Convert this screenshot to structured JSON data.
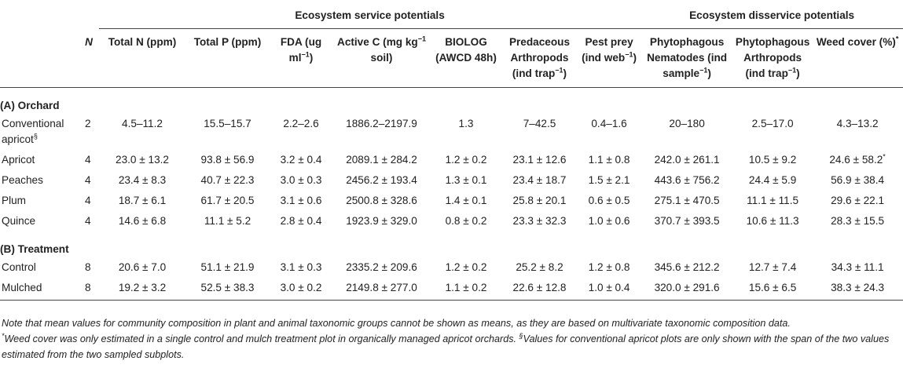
{
  "groups": {
    "service": "Ecosystem service potentials",
    "disservice": "Ecosystem disservice potentials"
  },
  "columns": [
    "",
    "N",
    "Total N (ppm)",
    "Total P (ppm)",
    "FDA (ug ml−1)",
    "Active C (mg kg−1 soil)",
    "BIOLOG (AWCD 48h)",
    "Predaceous Arthropods (ind trap−1)",
    "Pest prey (ind web−1)",
    "Phytophagous Nematodes (ind sample−1)",
    "Phytophagous Arthropods (ind trap−1)",
    "Weed cover (%)*"
  ],
  "sections": [
    {
      "title": "(A) Orchard",
      "rows": [
        [
          "Conventional apricot§",
          "2",
          "4.5–11.2",
          "15.5–15.7",
          "2.2–2.6",
          "1886.2–2197.9",
          "1.3",
          "7–42.5",
          "0.4–1.6",
          "20–180",
          "2.5–17.0",
          "4.3–13.2"
        ],
        [
          "Apricot",
          "4",
          "23.0 ± 13.2",
          "93.8 ± 56.9",
          "3.2 ± 0.4",
          "2089.1 ± 284.2",
          "1.2 ± 0.2",
          "23.1 ± 12.6",
          "1.1 ± 0.8",
          "242.0 ± 261.1",
          "10.5 ± 9.2",
          "24.6 ± 58.2*"
        ],
        [
          "Peaches",
          "4",
          "23.4 ± 8.3",
          "40.7 ± 22.3",
          "3.0 ± 0.3",
          "2456.2 ± 193.4",
          "1.3 ± 0.1",
          "23.4 ± 18.7",
          "1.5 ± 2.1",
          "443.6 ± 756.2",
          "24.4 ± 5.9",
          "56.9 ± 38.4"
        ],
        [
          "Plum",
          "4",
          "18.7 ± 6.1",
          "61.7 ± 20.5",
          "3.1 ± 0.6",
          "2500.8 ± 328.6",
          "1.4 ± 0.1",
          "25.8 ± 20.1",
          "0.6 ± 0.5",
          "275.1 ± 470.5",
          "11.1 ± 11.5",
          "29.6 ± 22.1"
        ],
        [
          "Quince",
          "4",
          "14.6 ± 6.8",
          "11.1 ± 5.2",
          "2.8 ± 0.4",
          "1923.9 ± 329.0",
          "0.8 ± 0.2",
          "23.3 ± 32.3",
          "1.0 ± 0.6",
          "370.7 ± 393.5",
          "10.6 ± 11.3",
          "28.3 ± 15.5"
        ]
      ]
    },
    {
      "title": "(B) Treatment",
      "rows": [
        [
          "Control",
          "8",
          "20.6 ± 7.0",
          "51.1 ± 21.9",
          "3.1 ± 0.3",
          "2335.2 ± 209.6",
          "1.2 ± 0.2",
          "25.2 ± 8.2",
          "1.2 ± 0.8",
          "345.6 ± 212.2",
          "12.7 ± 7.4",
          "34.3 ± 11.1"
        ],
        [
          "Mulched",
          "8",
          "19.2 ± 3.2",
          "52.5 ± 38.3",
          "3.0 ± 0.2",
          "2149.8 ± 277.0",
          "1.1 ± 0.2",
          "22.6 ± 12.8",
          "1.0 ± 0.4",
          "320.0 ± 291.6",
          "15.6 ± 6.5",
          "38.3 ± 24.3"
        ]
      ]
    }
  ],
  "notes": [
    "Note that mean values for community composition in plant and animal taxonomic groups cannot be shown as means, as they are based on multivariate taxonomic composition data.",
    "*Weed cover was only estimated in a single control and mulch treatment plot in organically managed apricot orchards. §Values for conventional apricot plots are only shown with the span of the two values estimated from the two sampled subplots."
  ]
}
